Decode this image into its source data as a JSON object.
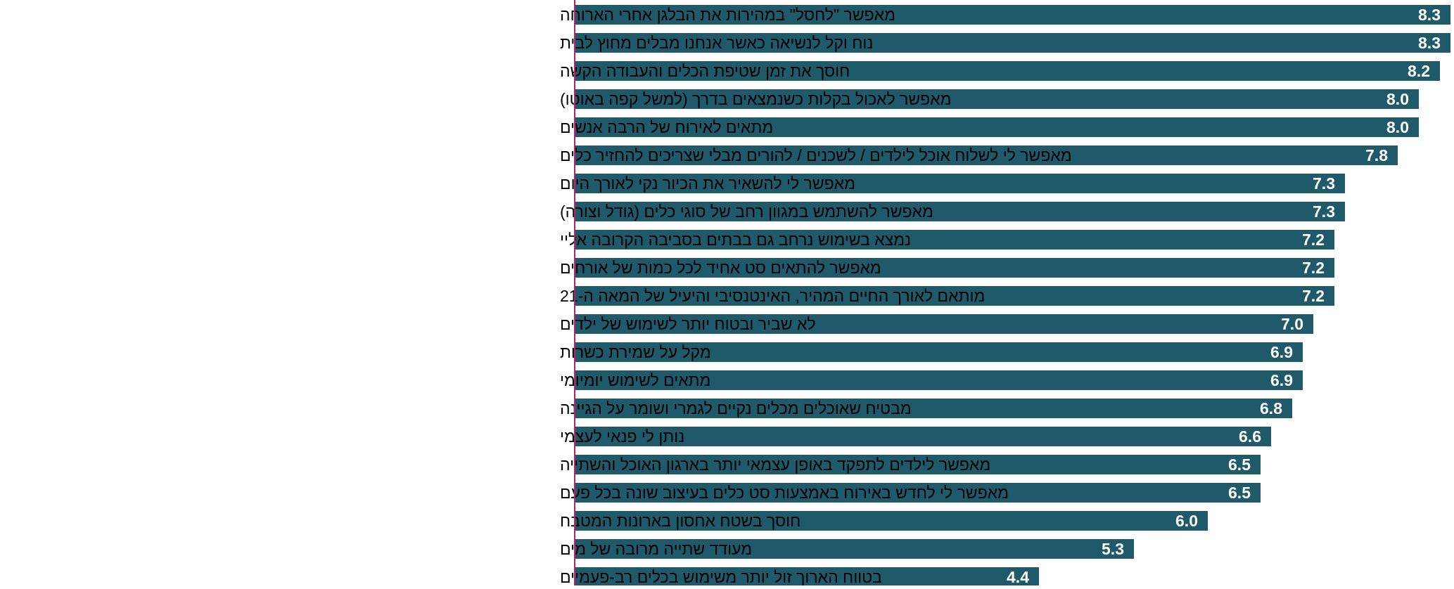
{
  "chart_data": {
    "type": "bar",
    "orientation": "horizontal",
    "title": "",
    "xlabel": "",
    "ylabel": "",
    "xlim": [
      0,
      8.3
    ],
    "grid": false,
    "legend": "none",
    "colors": {
      "bar": "#1f5a6b",
      "axis": "#b1246e",
      "value_label": "#ffffff",
      "category_label": "#000000"
    },
    "categories": [
      "מאפשר \"לחסל\" במהירות את הבלגן אחרי הארוחה",
      "נוח וקל לנשיאה כאשר אנחנו מבלים מחוץ לבית",
      "חוסך את זמן שטיפת הכלים והעבודה הקשה",
      "מאפשר לאכול בקלות כשנמצאים בדרך (למשל קפה באוטו)",
      "מתאים לאירוח של הרבה אנשים",
      "מאפשר לי לשלוח אוכל לילדים / לשכנים / להורים מבלי שצריכים להחזיר כלים",
      "מאפשר לי להשאיר את הכיור נקי לאורך היום",
      "מאפשר להשתמש במגוון רחב של סוגי כלים (גודל וצורה)",
      "נמצא בשימוש נרחב גם בבתים בסביבה הקרובה אליי",
      "מאפשר להתאים סט אחיד לכל כמות של אורחים",
      "מותאם לאורך החיים המהיר, האינטנסיבי והיעיל של המאה ה-21",
      "לא שביר ובטוח יותר לשימוש של ילדים",
      "מקל על שמירת כשרות",
      "מתאים לשימוש יומיומי",
      "מבטיח שאוכלים מכלים נקיים לגמרי ושומר על הגיינה",
      "נותן לי פנאי לעצמי",
      "מאפשר לילדים לתפקד באופן עצמאי יותר בארגון האוכל והשתייה",
      "מאפשר לי לחדש באירוח באמצעות סט כלים בעיצוב שונה בכל פעם",
      "חוסך בשטח אחסון בארונות המטבח",
      "מעודד שתייה מרובה של מים",
      "בטווח הארוך זול יותר משימוש בכלים רב-פעמיים"
    ],
    "values": [
      8.3,
      8.3,
      8.2,
      8.0,
      8.0,
      7.8,
      7.3,
      7.3,
      7.2,
      7.2,
      7.2,
      7.0,
      6.9,
      6.9,
      6.8,
      6.6,
      6.5,
      6.5,
      6.0,
      5.3,
      4.4
    ],
    "value_labels": [
      "8.3",
      "8.3",
      "8.2",
      "8.0",
      "8.0",
      "7.8",
      "7.3",
      "7.3",
      "7.2",
      "7.2",
      "7.2",
      "7.0",
      "6.9",
      "6.9",
      "6.8",
      "6.6",
      "6.5",
      "6.5",
      "6.0",
      "5.3",
      "4.4"
    ]
  }
}
